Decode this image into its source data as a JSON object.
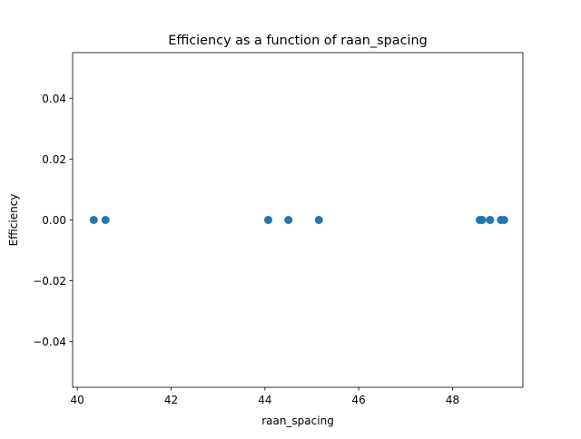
{
  "chart_data": {
    "type": "scatter",
    "title": "Efficiency as a function of raan_spacing",
    "xlabel": "raan_spacing",
    "ylabel": "Efficiency",
    "xlim": [
      39.9,
      49.5
    ],
    "ylim": [
      -0.055,
      0.055
    ],
    "grid": false,
    "legend": "none",
    "x_ticks": [
      40,
      42,
      44,
      46,
      48
    ],
    "x_tick_labels": [
      "40",
      "42",
      "44",
      "46",
      "48"
    ],
    "y_ticks": [
      -0.04,
      -0.02,
      0.0,
      0.02,
      0.04
    ],
    "y_tick_labels": [
      "−0.04",
      "−0.02",
      "0.00",
      "0.02",
      "0.04"
    ],
    "series": [
      {
        "color": "#1f77b4",
        "points": [
          {
            "x": 40.35,
            "y": 0.0
          },
          {
            "x": 40.6,
            "y": 0.0
          },
          {
            "x": 44.07,
            "y": 0.0
          },
          {
            "x": 44.5,
            "y": 0.0
          },
          {
            "x": 45.15,
            "y": 0.0
          },
          {
            "x": 48.58,
            "y": 0.0
          },
          {
            "x": 48.63,
            "y": 0.0
          },
          {
            "x": 48.8,
            "y": 0.0
          },
          {
            "x": 49.03,
            "y": 0.0
          },
          {
            "x": 49.1,
            "y": 0.0
          }
        ]
      }
    ]
  }
}
